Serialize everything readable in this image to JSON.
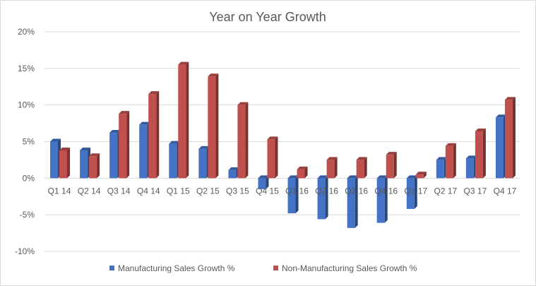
{
  "chart_data": {
    "type": "bar",
    "title": "Year on Year Growth",
    "xlabel": "",
    "ylabel": "",
    "ylim": [
      -10,
      20
    ],
    "yticks": [
      "-10%",
      "-5%",
      "0%",
      "5%",
      "10%",
      "15%",
      "20%"
    ],
    "yticks_values": [
      -10,
      -5,
      0,
      5,
      10,
      15,
      20
    ],
    "grid": true,
    "legend_position": "bottom",
    "categories": [
      "Q1 14",
      "Q2 14",
      "Q3 14",
      "Q4 14",
      "Q1 15",
      "Q2 15",
      "Q3 15",
      "Q4 15",
      "Q1 16",
      "Q2 16",
      "Q3 16",
      "Q4 16",
      "Q1 17",
      "Q2 17",
      "Q3 17",
      "Q4 17"
    ],
    "series": [
      {
        "name": "Manufacturing Sales Growth %",
        "color": "#4472C4",
        "values": [
          5.0,
          3.8,
          6.2,
          7.3,
          4.7,
          4.0,
          1.1,
          -1.5,
          -4.8,
          -5.6,
          -6.8,
          -6.1,
          -4.2,
          2.5,
          2.7,
          8.3
        ]
      },
      {
        "name": "Non-Manufacturing Sales Growth %",
        "color": "#C0504D",
        "values": [
          3.8,
          3.0,
          8.8,
          11.5,
          15.5,
          13.9,
          10.0,
          5.3,
          1.2,
          2.5,
          2.5,
          3.2,
          0.5,
          4.4,
          6.4,
          10.7
        ]
      }
    ]
  }
}
